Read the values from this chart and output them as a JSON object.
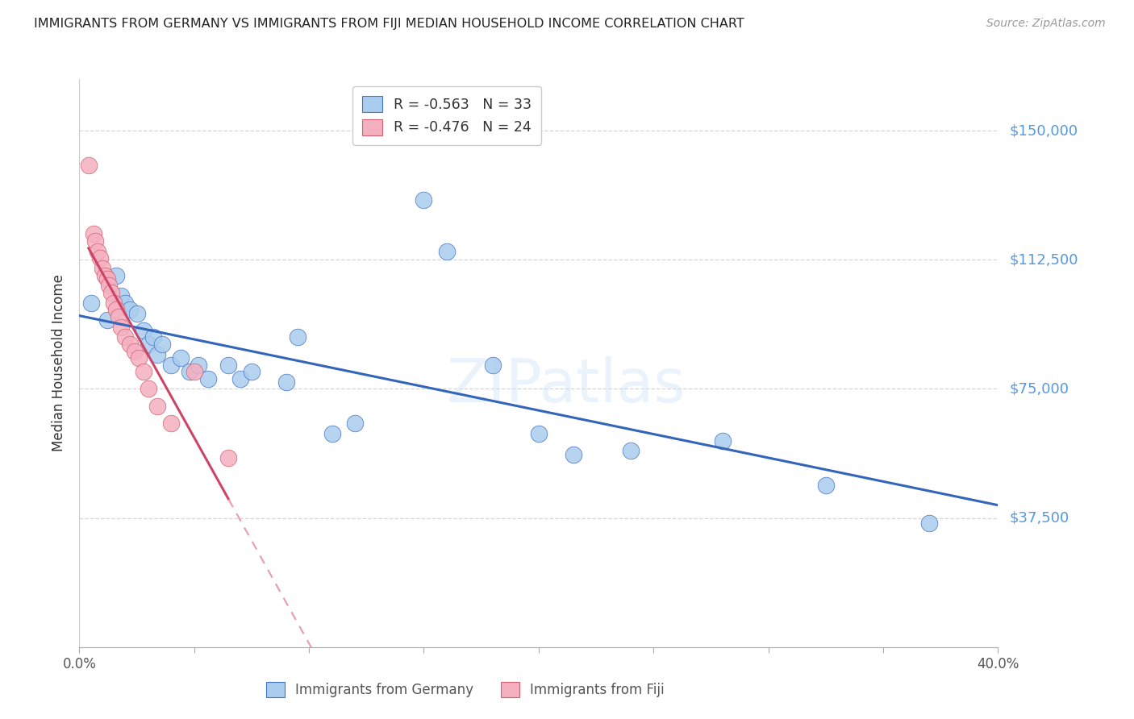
{
  "title": "IMMIGRANTS FROM GERMANY VS IMMIGRANTS FROM FIJI MEDIAN HOUSEHOLD INCOME CORRELATION CHART",
  "source": "Source: ZipAtlas.com",
  "ylabel": "Median Household Income",
  "ytick_values": [
    37500,
    75000,
    112500,
    150000
  ],
  "ytick_labels": [
    "$37,500",
    "$75,000",
    "$112,500",
    "$150,000"
  ],
  "ymin": 0,
  "ymax": 165000,
  "xmin": 0.0,
  "xmax": 0.4,
  "watermark": "ZIPatlas",
  "legend_top": [
    "R = -0.563   N = 33",
    "R = -0.476   N = 24"
  ],
  "legend_bottom": [
    "Immigrants from Germany",
    "Immigrants from Fiji"
  ],
  "germany_x": [
    0.005,
    0.012,
    0.016,
    0.018,
    0.02,
    0.022,
    0.025,
    0.028,
    0.03,
    0.032,
    0.034,
    0.036,
    0.04,
    0.044,
    0.048,
    0.052,
    0.056,
    0.065,
    0.07,
    0.075,
    0.09,
    0.095,
    0.11,
    0.12,
    0.15,
    0.16,
    0.18,
    0.2,
    0.215,
    0.24,
    0.28,
    0.325,
    0.37
  ],
  "germany_y": [
    100000,
    95000,
    108000,
    102000,
    100000,
    98000,
    97000,
    92000,
    88000,
    90000,
    85000,
    88000,
    82000,
    84000,
    80000,
    82000,
    78000,
    82000,
    78000,
    80000,
    77000,
    90000,
    62000,
    65000,
    130000,
    115000,
    82000,
    62000,
    56000,
    57000,
    60000,
    47000,
    36000
  ],
  "fiji_x": [
    0.004,
    0.006,
    0.007,
    0.008,
    0.009,
    0.01,
    0.011,
    0.012,
    0.013,
    0.014,
    0.015,
    0.016,
    0.017,
    0.018,
    0.02,
    0.022,
    0.024,
    0.026,
    0.028,
    0.03,
    0.034,
    0.04,
    0.05,
    0.065
  ],
  "fiji_y": [
    140000,
    120000,
    118000,
    115000,
    113000,
    110000,
    108000,
    107000,
    105000,
    103000,
    100000,
    98000,
    96000,
    93000,
    90000,
    88000,
    86000,
    84000,
    80000,
    75000,
    70000,
    65000,
    80000,
    55000
  ],
  "germany_color": "#aaccee",
  "germany_edge_color": "#4472c4",
  "fiji_color": "#f5b0c0",
  "fiji_edge_color": "#d06070",
  "regression_germany_color": "#3366bb",
  "regression_fiji_solid_color": "#cc4466",
  "regression_fiji_dash_color": "#e8a0b0",
  "background_color": "#ffffff",
  "grid_color": "#cccccc",
  "ytick_color": "#5599dd",
  "title_color": "#222222",
  "source_color": "#999999"
}
